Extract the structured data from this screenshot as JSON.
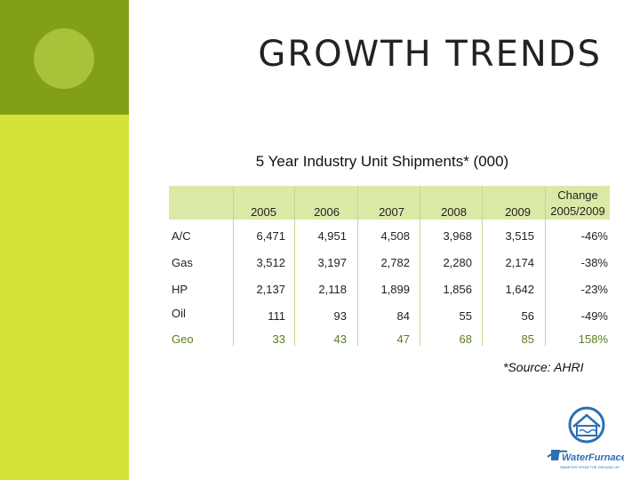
{
  "slide": {
    "title": "GROWTH TRENDS",
    "subtitle": "5 Year Industry Unit Shipments* (000)",
    "source": "*Source: AHRI"
  },
  "table": {
    "columns": [
      "2005",
      "2006",
      "2007",
      "2008",
      "2009"
    ],
    "change_header_line1": "Change",
    "change_header_line2": "2005/2009",
    "rows": [
      {
        "label": "A/C",
        "values": [
          "6,471",
          "4,951",
          "4,508",
          "3,968",
          "3,515"
        ],
        "change": "-46%"
      },
      {
        "label": "Gas",
        "values": [
          "3,512",
          "3,197",
          "2,782",
          "2,280",
          "2,174"
        ],
        "change": "-38%"
      },
      {
        "label": "HP",
        "values": [
          "2,137",
          "2,118",
          "1,899",
          "1,856",
          "1,642"
        ],
        "change": "-23%"
      },
      {
        "label": "Oil",
        "values": [
          "111",
          "93",
          "84",
          "55",
          "56"
        ],
        "change": "-49%"
      },
      {
        "label": "Geo",
        "values": [
          "33",
          "43",
          "47",
          "68",
          "85"
        ],
        "change": "158%"
      }
    ]
  },
  "logo": {
    "brand": "WaterFurnace",
    "tagline": "SMARTER FROM THE GROUND UP"
  },
  "colors": {
    "left_band": "#d4e23a",
    "top_band": "#82a017",
    "circle": "#a8c33a",
    "header_fill": "#dbe9a7",
    "geo_text": "#5a7d1c",
    "logo_blue": "#2c6fb3"
  }
}
